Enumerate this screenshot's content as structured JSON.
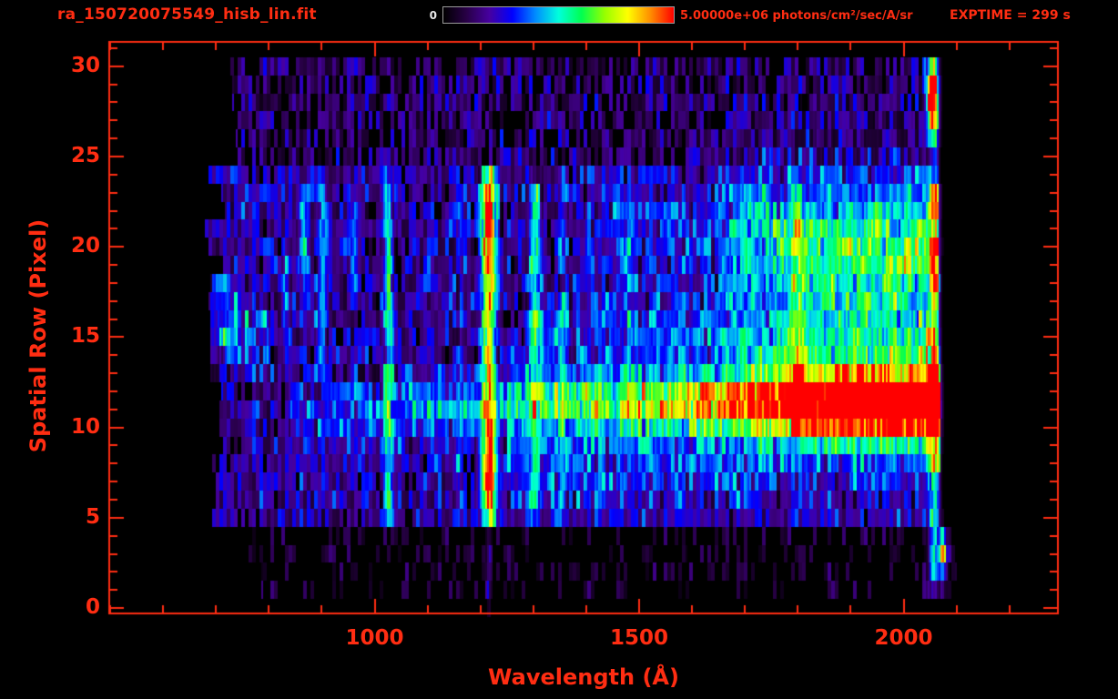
{
  "colors": {
    "background": "#000000",
    "accent_red": "#ff2d12",
    "colorbar_min_label_color": "#e8e8e8",
    "colorbar_border": "#9a9a9a"
  },
  "header": {
    "filename": "ra_150720075549_hisb_lin.fit",
    "exptime_label": "EXPTIME = 299 s",
    "exptime_seconds": 299,
    "colorbar": {
      "min_label": "0",
      "max_label": "5.00000e+06 photons/cm²/sec/A/sr",
      "max_value": 5000000
    }
  },
  "chart_data": {
    "type": "heatmap",
    "title": "ra_150720075549_hisb_lin.fit",
    "xlabel": "Wavelength (Å)",
    "ylabel": "Spatial Row (Pixel)",
    "x_ticks": [
      1000,
      1500,
      2000
    ],
    "x_minor_tick_step": 100,
    "y_ticks": [
      0,
      5,
      10,
      15,
      20,
      25,
      30
    ],
    "y_minor_tick_step": 1,
    "xlim": [
      500,
      2290
    ],
    "ylim": [
      -0.25,
      31.3
    ],
    "grid": false,
    "legend": false,
    "colorbar_range": [
      0,
      5000000
    ],
    "colormap": [
      "#000000",
      "#280046",
      "#4600a0",
      "#0000ff",
      "#008cff",
      "#00ffdc",
      "#00ff50",
      "#96ff00",
      "#ffff00",
      "#ff8c00",
      "#ff0000"
    ],
    "data_range": {
      "wl_min": 680,
      "wl_max": 2070,
      "row_min": 1,
      "row_max": 30
    },
    "background_noise": [
      {
        "rows": [
          1,
          4
        ],
        "presence": 0.3,
        "min": 0.03,
        "max": 0.14
      },
      {
        "rows": [
          5,
          24
        ],
        "presence": 0.93,
        "min": 0.08,
        "max": 0.32
      },
      {
        "rows": [
          25,
          30
        ],
        "presence": 0.72,
        "min": 0.05,
        "max": 0.26
      }
    ],
    "emission_lines": [
      {
        "wl": 1216,
        "sigma": 9,
        "rows": [
          4.5,
          24.5
        ],
        "amp": 0.55,
        "row_bumps": [
          {
            "row": 7.2,
            "sigma": 1.8,
            "amp": 0.42
          },
          {
            "row": 21.5,
            "sigma": 2.3,
            "amp": 0.45
          }
        ]
      },
      {
        "wl": 1216,
        "sigma": 4,
        "rows": [
          0,
          4.5
        ],
        "amp": 0.14
      },
      {
        "wl": 1026,
        "sigma": 6,
        "rows": [
          4.5,
          24
        ],
        "amp": 0.3,
        "row_bumps": [
          {
            "row": 20,
            "sigma": 3,
            "amp": 0.12
          }
        ]
      },
      {
        "wl": 1304,
        "sigma": 7,
        "rows": [
          4.5,
          24
        ],
        "amp": 0.26,
        "row_bumps": [
          {
            "row": 20.5,
            "sigma": 2.5,
            "amp": 0.14
          }
        ]
      },
      {
        "wl": 1356,
        "sigma": 5,
        "rows": [
          5,
          24
        ],
        "amp": 0.17
      },
      {
        "wl": 1160,
        "sigma": 5,
        "rows": [
          5,
          24
        ],
        "amp": 0.1
      },
      {
        "wl": 960,
        "sigma": 5,
        "rows": [
          17,
          23
        ],
        "amp": 0.15
      },
      {
        "wl": 900,
        "sigma": 7,
        "rows": [
          13,
          23.5
        ],
        "amp": 0.22
      },
      {
        "wl": 865,
        "sigma": 6,
        "rows": [
          18,
          23
        ],
        "amp": 0.28
      },
      {
        "wl": 832,
        "sigma": 5,
        "rows": [
          14,
          20
        ],
        "amp": 0.18
      },
      {
        "wl": 1800,
        "sigma": 8,
        "rows": [
          9.5,
          23.5
        ],
        "amp": 0.28
      },
      {
        "wl": 1480,
        "sigma": 6,
        "rows": [
          9.5,
          23
        ],
        "amp": 0.1
      },
      {
        "wl": 2058,
        "sigma": 7,
        "rows": [
          1,
          24
        ],
        "amp": 0.45
      },
      {
        "wl": 2058,
        "sigma": 6,
        "rows": [
          25,
          30
        ],
        "amp": 0.5
      }
    ],
    "bands": [
      {
        "row": 11.3,
        "sigma": 1.0,
        "wl": [
          1250,
          2068
        ],
        "amp_stops": [
          [
            1250,
            0.28
          ],
          [
            1500,
            0.42
          ],
          [
            1700,
            0.6
          ],
          [
            1850,
            0.82
          ],
          [
            1950,
            1.0
          ],
          [
            2068,
            1.0
          ]
        ]
      },
      {
        "row": 11.3,
        "sigma": 2.4,
        "wl": [
          1250,
          2068
        ],
        "amp_stops": [
          [
            1250,
            0.08
          ],
          [
            1700,
            0.22
          ],
          [
            1950,
            0.38
          ],
          [
            2068,
            0.38
          ]
        ]
      },
      {
        "row": 11.0,
        "sigma": 1.3,
        "wl": [
          840,
          1250
        ],
        "amp_stops": [
          [
            840,
            0.12
          ],
          [
            1000,
            0.18
          ],
          [
            1250,
            0.22
          ]
        ]
      },
      {
        "row": 17.5,
        "sigma": 5.0,
        "wl": [
          1650,
          2065
        ],
        "amp_stops": [
          [
            1650,
            0.1
          ],
          [
            1800,
            0.26
          ],
          [
            2065,
            0.3
          ]
        ]
      },
      {
        "row": 20.0,
        "sigma": 1.5,
        "wl": [
          1750,
          2065
        ],
        "amp_stops": [
          [
            1750,
            0.14
          ],
          [
            2065,
            0.2
          ]
        ]
      },
      {
        "row": 21.0,
        "sigma": 2.0,
        "wl": [
          1400,
          1750
        ],
        "amp_stops": [
          [
            1400,
            0.1
          ],
          [
            1750,
            0.14
          ]
        ]
      },
      {
        "row": 15.5,
        "sigma": 1.2,
        "wl": [
          1280,
          1700
        ],
        "amp_stops": [
          [
            1280,
            0.12
          ],
          [
            1700,
            0.1
          ]
        ]
      },
      {
        "row": 7.5,
        "sigma": 1.5,
        "wl": [
          1250,
          1750
        ],
        "amp_stops": [
          [
            1250,
            0.12
          ],
          [
            1750,
            0.07
          ]
        ]
      },
      {
        "row": 15.5,
        "sigma": 1.5,
        "wl": [
          690,
          800
        ],
        "amp_stops": [
          [
            690,
            0.3
          ],
          [
            800,
            0.15
          ]
        ]
      }
    ],
    "spots": [
      {
        "wl": 2053,
        "row": 28.5,
        "wl_sigma": 7,
        "row_sigma": 1.3,
        "amp": 1.0
      },
      {
        "wl": 2058,
        "row": 11.3,
        "wl_sigma": 8,
        "row_sigma": 1.2,
        "amp": 0.55
      },
      {
        "wl": 2075,
        "row": 3.0,
        "wl_sigma": 5,
        "row_sigma": 0.8,
        "amp": 0.75
      }
    ]
  }
}
